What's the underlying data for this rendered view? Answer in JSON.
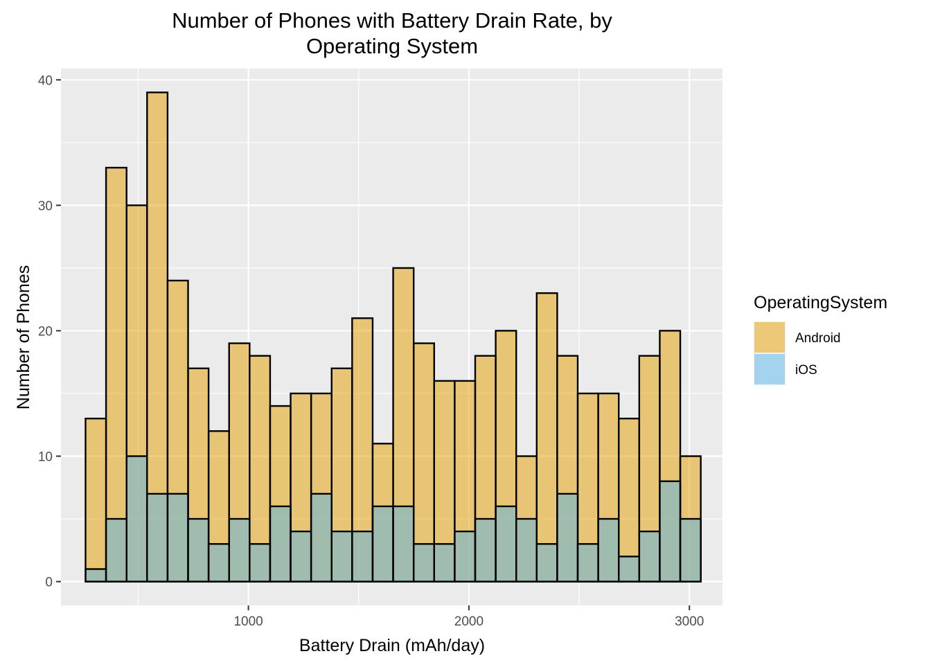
{
  "chart_data": {
    "type": "bar",
    "subtype": "stacked-histogram",
    "title": [
      "Number of Phones with Battery Drain Rate, by",
      "Operating System"
    ],
    "xlabel": "Battery Drain (mAh/day)",
    "ylabel": "Number of Phones",
    "xlim": [
      150,
      3150
    ],
    "ylim": [
      -1.9,
      40.9
    ],
    "x_ticks": [
      1000,
      2000,
      3000
    ],
    "x_tick_labels": [
      "1000",
      "2000",
      "3000"
    ],
    "y_ticks": [
      0,
      10,
      20,
      30,
      40
    ],
    "y_tick_labels": [
      "0",
      "10",
      "20",
      "30",
      "40"
    ],
    "grid": true,
    "legend_placement": "right",
    "legend_title": "OperatingSystem",
    "bin_centers": [
      308,
      401,
      494,
      587,
      680,
      773,
      866,
      959,
      1052,
      1145,
      1238,
      1331,
      1424,
      1517,
      1610,
      1703,
      1796,
      1889,
      1982,
      2075,
      2168,
      2261,
      2354,
      2447,
      2540,
      2633,
      2726,
      2819,
      2912,
      3005
    ],
    "series": [
      {
        "name": "Android",
        "color": "#E69F00",
        "values": [
          13,
          33,
          30,
          39,
          24,
          17,
          12,
          19,
          18,
          14,
          15,
          15,
          17,
          21,
          11,
          25,
          19,
          16,
          16,
          18,
          20,
          10,
          23,
          18,
          15,
          15,
          13,
          18,
          20,
          10
        ]
      },
      {
        "name": "iOS",
        "color": "#56B4E9",
        "values": [
          1,
          5,
          10,
          7,
          7,
          5,
          3,
          5,
          3,
          6,
          4,
          7,
          4,
          4,
          6,
          6,
          3,
          3,
          4,
          5,
          6,
          5,
          3,
          7,
          3,
          5,
          2,
          4,
          8,
          5
        ]
      }
    ],
    "fill_alpha": 0.5,
    "bar_outline": "#000000"
  }
}
